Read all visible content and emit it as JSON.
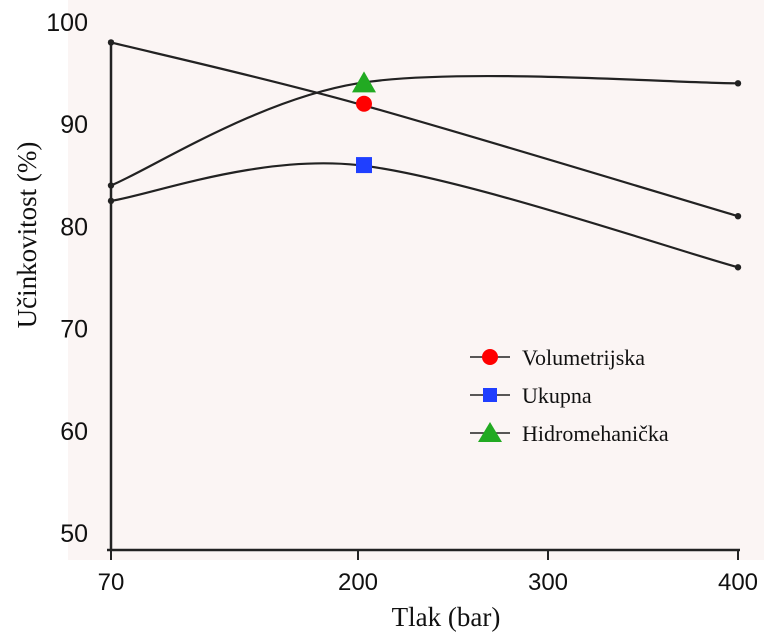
{
  "chart_data": {
    "type": "line",
    "xlabel": "Tlak (bar)",
    "ylabel": "Učinkovitost (%)",
    "x_ticks": [
      "70",
      "200",
      "300",
      "400"
    ],
    "y_ticks": [
      "50",
      "60",
      "70",
      "80",
      "90",
      "100"
    ],
    "xlim": [
      70,
      400
    ],
    "ylim": [
      50,
      100
    ],
    "legend_position": "right-middle",
    "grid": false,
    "series": [
      {
        "name": "Volumetrijska",
        "color": "#ff0000",
        "marker": "circle",
        "x": [
          70,
          200,
          400
        ],
        "y": [
          98,
          92,
          81
        ]
      },
      {
        "name": "Ukupna",
        "color": "#1f3fff",
        "marker": "square",
        "x": [
          70,
          200,
          400
        ],
        "y": [
          82.5,
          86,
          76
        ]
      },
      {
        "name": "Hidromehanička",
        "color": "#22aa22",
        "marker": "triangle",
        "x": [
          70,
          200,
          400
        ],
        "y": [
          84,
          94,
          94
        ]
      }
    ]
  }
}
